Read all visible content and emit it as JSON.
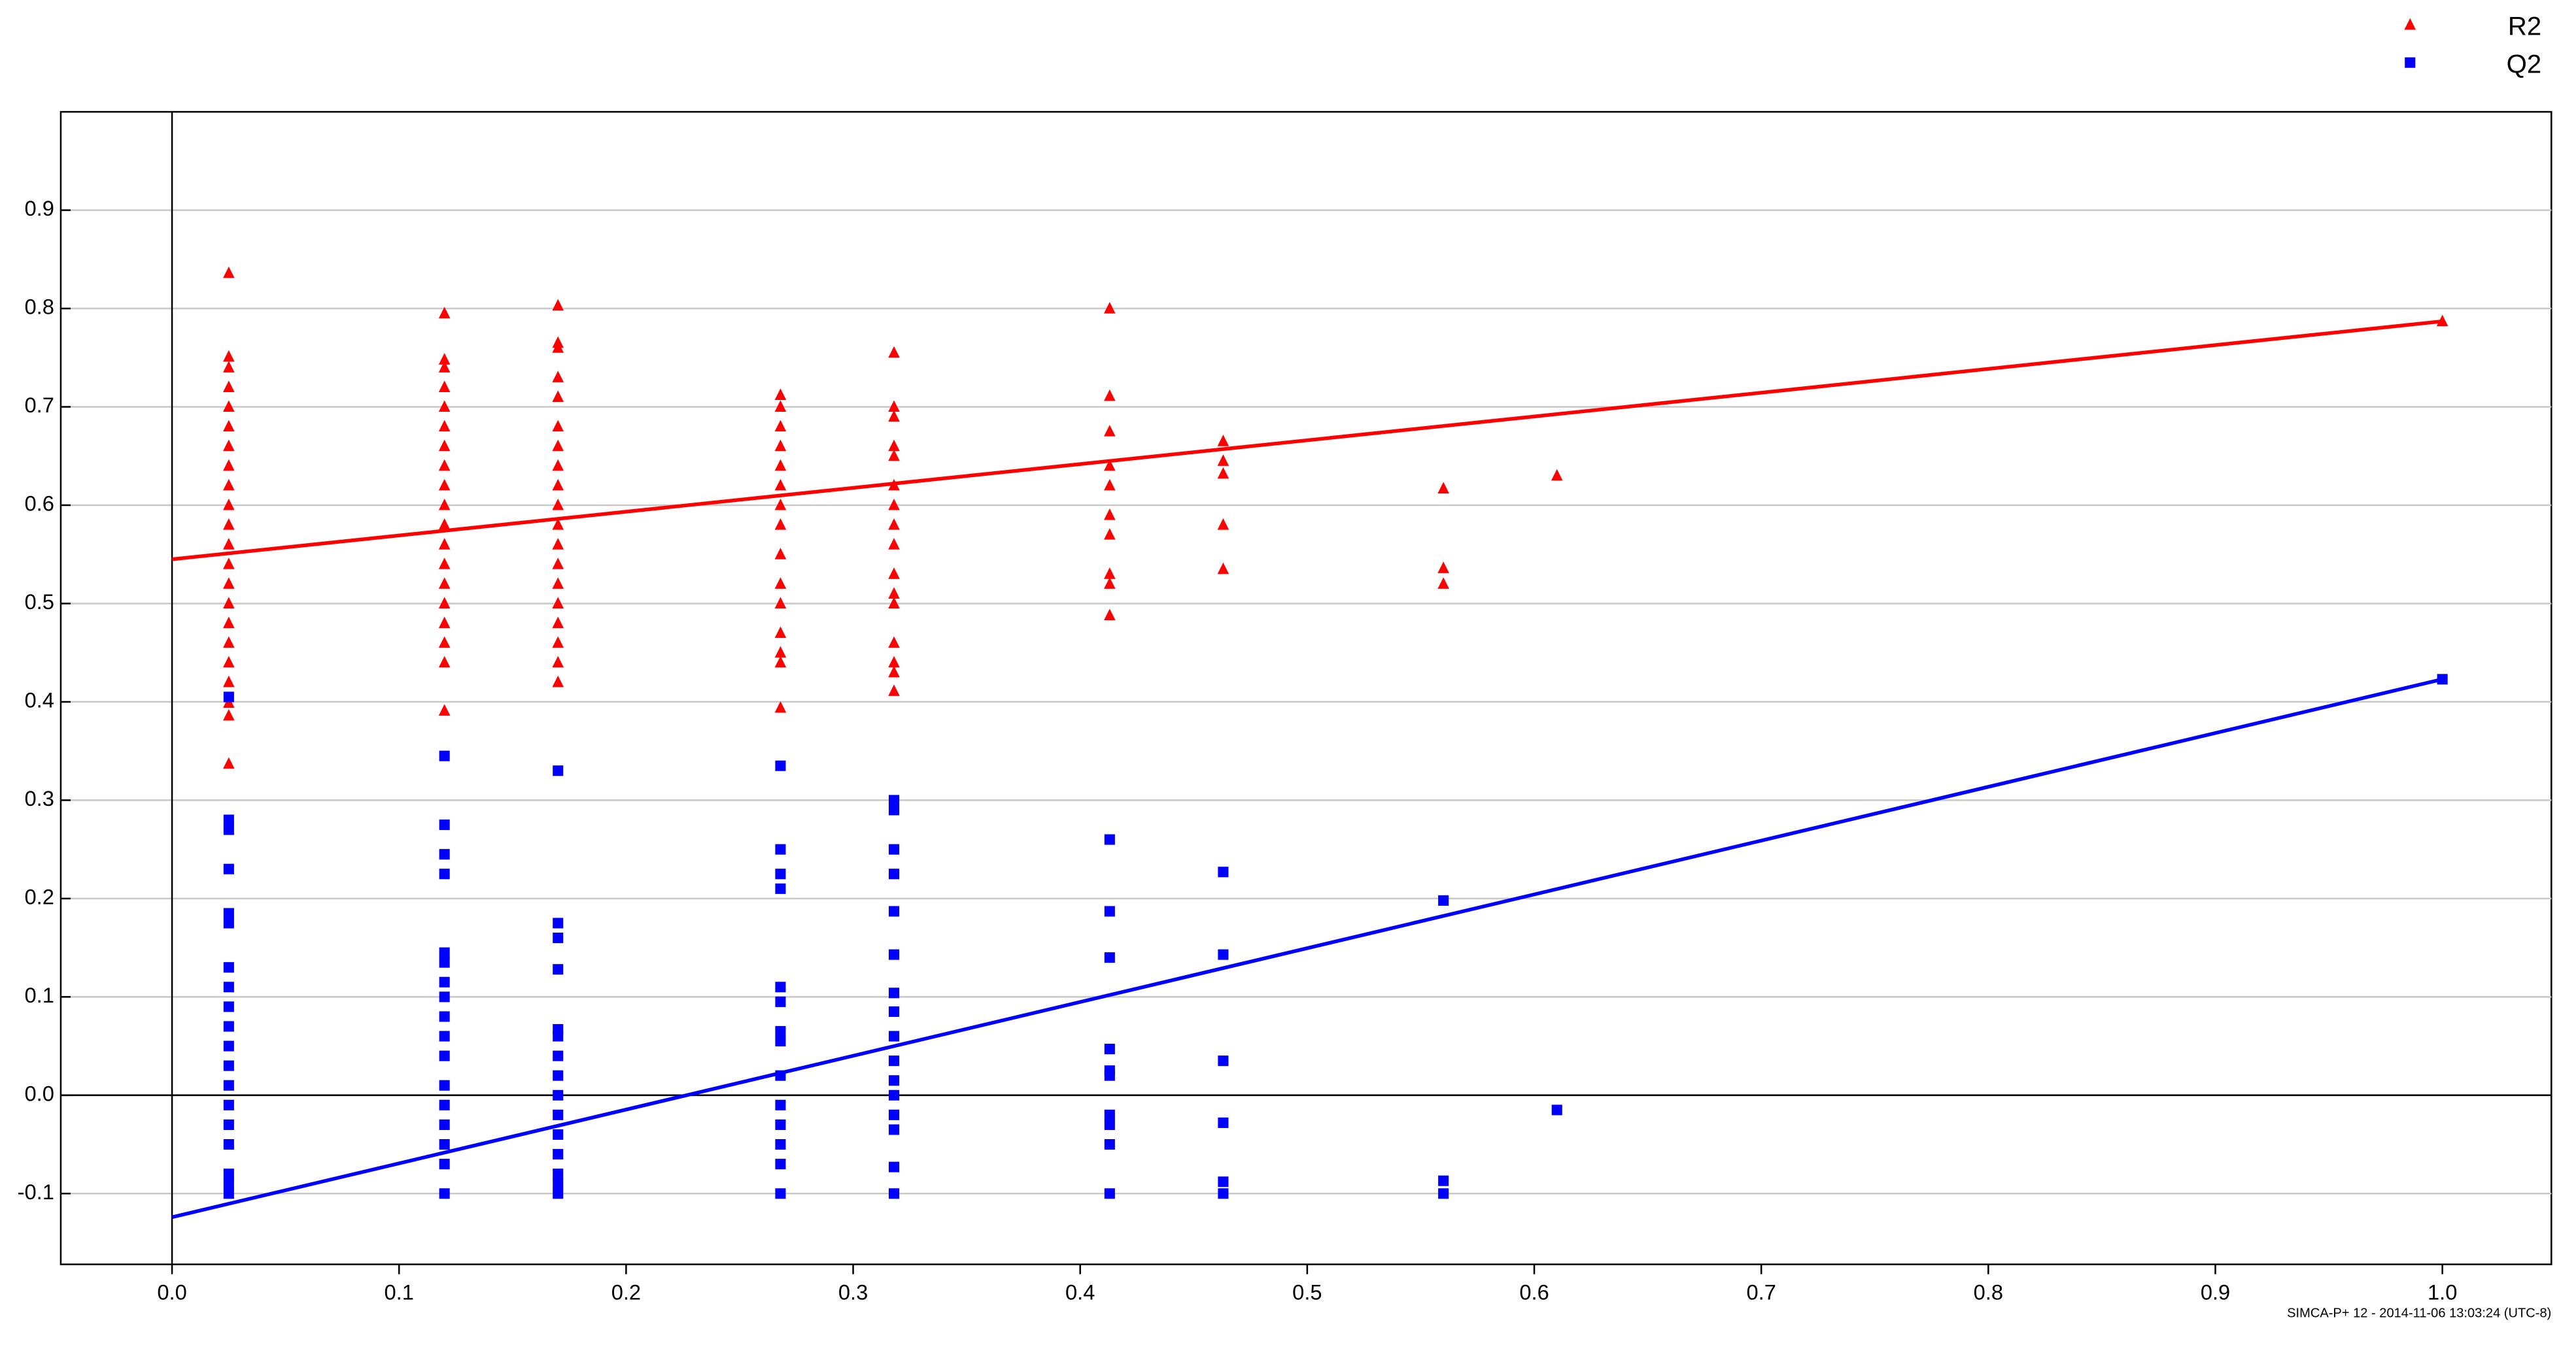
{
  "chart_data": {
    "type": "scatter",
    "footer": "SIMCA-P+ 12 - 2014-11-06 13:03:24 (UTC-8)",
    "xlim": [
      -0.049,
      1.048
    ],
    "ylim": [
      -0.172,
      1.0
    ],
    "xticks": [
      {
        "value": 0,
        "label": "0.0"
      },
      0.1,
      0.2,
      0.3,
      0.4,
      0.5,
      0.6,
      0.7,
      0.8,
      0.9,
      {
        "value": 1,
        "label": "1.0"
      }
    ],
    "yticks": [
      -0.1,
      {
        "value": 0,
        "label": "0.0"
      },
      0.1,
      0.2,
      0.3,
      0.4,
      0.5,
      0.6,
      0.7,
      0.8,
      0.9
    ],
    "grid": true,
    "legend": "top-right",
    "series": [
      {
        "name": "R2",
        "color": "#ff0000",
        "marker": "triangle",
        "x": [
          0.025,
          0.025,
          0.025,
          0.025,
          0.025,
          0.025,
          0.025,
          0.025,
          0.025,
          0.025,
          0.025,
          0.025,
          0.025,
          0.025,
          0.025,
          0.025,
          0.025,
          0.025,
          0.025,
          0.025,
          0.025,
          0.025,
          0.12,
          0.12,
          0.12,
          0.12,
          0.12,
          0.12,
          0.12,
          0.12,
          0.12,
          0.12,
          0.12,
          0.12,
          0.12,
          0.12,
          0.12,
          0.12,
          0.12,
          0.12,
          0.12,
          0.17,
          0.17,
          0.17,
          0.17,
          0.17,
          0.17,
          0.17,
          0.17,
          0.17,
          0.17,
          0.17,
          0.17,
          0.17,
          0.17,
          0.17,
          0.17,
          0.17,
          0.17,
          0.17,
          0.268,
          0.268,
          0.268,
          0.268,
          0.268,
          0.268,
          0.268,
          0.268,
          0.268,
          0.268,
          0.268,
          0.268,
          0.268,
          0.268,
          0.268,
          0.318,
          0.318,
          0.318,
          0.318,
          0.318,
          0.318,
          0.318,
          0.318,
          0.318,
          0.318,
          0.318,
          0.318,
          0.318,
          0.318,
          0.318,
          0.318,
          0.413,
          0.413,
          0.413,
          0.413,
          0.413,
          0.413,
          0.413,
          0.413,
          0.413,
          0.413,
          0.463,
          0.463,
          0.463,
          0.463,
          0.463,
          0.56,
          0.56,
          0.56,
          0.61,
          1.0
        ],
        "values": [
          0.836,
          0.751,
          0.74,
          0.72,
          0.7,
          0.68,
          0.66,
          0.64,
          0.62,
          0.6,
          0.58,
          0.56,
          0.54,
          0.52,
          0.5,
          0.48,
          0.46,
          0.44,
          0.42,
          0.399,
          0.386,
          0.337,
          0.795,
          0.748,
          0.74,
          0.72,
          0.7,
          0.68,
          0.66,
          0.64,
          0.62,
          0.6,
          0.58,
          0.56,
          0.54,
          0.52,
          0.5,
          0.48,
          0.46,
          0.44,
          0.391,
          0.803,
          0.765,
          0.76,
          0.73,
          0.71,
          0.68,
          0.66,
          0.64,
          0.62,
          0.6,
          0.58,
          0.56,
          0.54,
          0.52,
          0.5,
          0.48,
          0.46,
          0.44,
          0.42,
          0.712,
          0.7,
          0.68,
          0.66,
          0.64,
          0.62,
          0.6,
          0.58,
          0.55,
          0.52,
          0.5,
          0.47,
          0.45,
          0.44,
          0.394,
          0.755,
          0.7,
          0.69,
          0.66,
          0.65,
          0.62,
          0.6,
          0.58,
          0.56,
          0.53,
          0.51,
          0.5,
          0.46,
          0.44,
          0.43,
          0.411,
          0.8,
          0.711,
          0.675,
          0.64,
          0.62,
          0.59,
          0.57,
          0.53,
          0.52,
          0.488,
          0.665,
          0.645,
          0.632,
          0.58,
          0.535,
          0.617,
          0.536,
          0.52,
          0.63,
          0.787
        ]
      },
      {
        "name": "Q2",
        "color": "#0000ff",
        "marker": "square",
        "x": [
          0.025,
          0.025,
          0.025,
          0.025,
          0.025,
          0.025,
          0.025,
          0.025,
          0.025,
          0.025,
          0.025,
          0.025,
          0.025,
          0.025,
          0.025,
          0.025,
          0.025,
          0.025,
          0.025,
          0.12,
          0.12,
          0.12,
          0.12,
          0.12,
          0.12,
          0.12,
          0.12,
          0.12,
          0.12,
          0.12,
          0.12,
          0.12,
          0.12,
          0.12,
          0.12,
          0.12,
          0.17,
          0.17,
          0.17,
          0.17,
          0.17,
          0.17,
          0.17,
          0.17,
          0.17,
          0.17,
          0.17,
          0.17,
          0.17,
          0.17,
          0.17,
          0.268,
          0.268,
          0.268,
          0.268,
          0.268,
          0.268,
          0.268,
          0.268,
          0.268,
          0.268,
          0.268,
          0.268,
          0.268,
          0.268,
          0.318,
          0.318,
          0.318,
          0.318,
          0.318,
          0.318,
          0.318,
          0.318,
          0.318,
          0.318,
          0.318,
          0.318,
          0.318,
          0.318,
          0.318,
          0.318,
          0.413,
          0.413,
          0.413,
          0.413,
          0.413,
          0.413,
          0.413,
          0.413,
          0.413,
          0.413,
          0.463,
          0.463,
          0.463,
          0.463,
          0.463,
          0.463,
          0.56,
          0.56,
          0.56,
          0.61,
          1.0
        ],
        "values": [
          0.405,
          0.28,
          0.27,
          0.23,
          0.185,
          0.175,
          0.13,
          0.11,
          0.09,
          0.07,
          0.05,
          0.03,
          0.01,
          -0.01,
          -0.03,
          -0.05,
          -0.08,
          -0.09,
          -0.1,
          0.345,
          0.275,
          0.245,
          0.225,
          0.145,
          0.135,
          0.115,
          0.1,
          0.08,
          0.06,
          0.04,
          0.01,
          -0.01,
          -0.03,
          -0.05,
          -0.07,
          -0.1,
          0.33,
          0.175,
          0.16,
          0.128,
          0.067,
          0.06,
          0.04,
          0.02,
          0.0,
          -0.02,
          -0.04,
          -0.06,
          -0.08,
          -0.09,
          -0.1,
          0.335,
          0.25,
          0.225,
          0.21,
          0.11,
          0.095,
          0.065,
          0.055,
          0.02,
          -0.01,
          -0.03,
          -0.05,
          -0.07,
          -0.1,
          0.3,
          0.29,
          0.25,
          0.225,
          0.187,
          0.143,
          0.104,
          0.085,
          0.06,
          0.035,
          0.015,
          0.0,
          -0.02,
          -0.035,
          -0.073,
          -0.1,
          0.26,
          0.187,
          0.14,
          0.047,
          0.025,
          0.02,
          -0.02,
          -0.03,
          -0.05,
          -0.1,
          0.227,
          0.143,
          0.035,
          -0.028,
          -0.088,
          -0.1,
          0.198,
          -0.087,
          -0.1,
          -0.015,
          0.423
        ]
      }
    ],
    "lines": [
      {
        "color": "#ff0000",
        "x": [
          0,
          1
        ],
        "values": [
          0.545,
          0.787
        ]
      },
      {
        "color": "#0000ff",
        "x": [
          0,
          1
        ],
        "values": [
          -0.124,
          0.423
        ]
      }
    ]
  }
}
